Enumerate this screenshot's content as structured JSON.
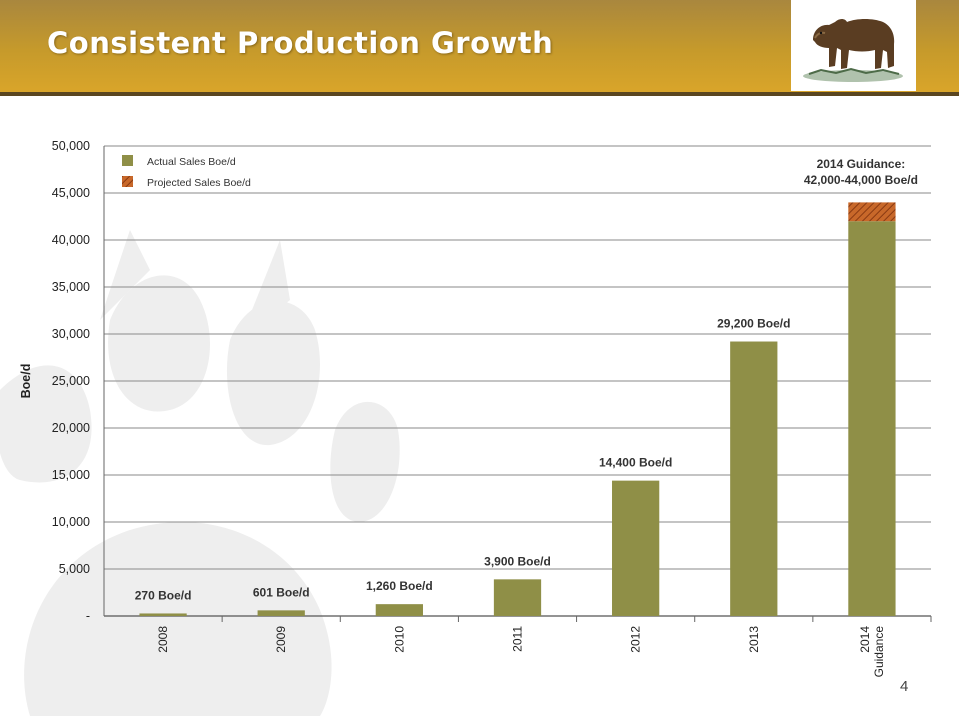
{
  "header": {
    "title": "Consistent Production Growth"
  },
  "logo": {
    "icon": "grizzly-bear-icon"
  },
  "watermark": {
    "icon": "bear-paw-icon"
  },
  "colors": {
    "actual": "#8f8f47",
    "projected": "#c8682a",
    "header": "#c69a2b",
    "header_rule": "#5a4620"
  },
  "chart_data": {
    "type": "bar",
    "stacked": true,
    "ylabel": "Boe/d",
    "xlabel": "",
    "ylim": [
      0,
      50000
    ],
    "yticks": [
      0,
      5000,
      10000,
      15000,
      20000,
      25000,
      30000,
      35000,
      40000,
      45000,
      50000
    ],
    "ytick_labels": [
      "-",
      "5,000",
      "10,000",
      "15,000",
      "20,000",
      "25,000",
      "30,000",
      "35,000",
      "40,000",
      "45,000",
      "50,000"
    ],
    "categories": [
      "2008",
      "2009",
      "2010",
      "2011",
      "2012",
      "2013",
      "2014 Guidance"
    ],
    "category_lines": [
      [
        "2008"
      ],
      [
        "2009"
      ],
      [
        "2010"
      ],
      [
        "2011"
      ],
      [
        "2012"
      ],
      [
        "2013"
      ],
      [
        "2014",
        "Guidance"
      ]
    ],
    "series": [
      {
        "name": "Actual Sales Boe/d",
        "values": [
          270,
          601,
          1260,
          3900,
          14400,
          29200,
          42000
        ]
      },
      {
        "name": "Projected Sales Boe/d",
        "values": [
          0,
          0,
          0,
          0,
          0,
          0,
          2000
        ]
      }
    ],
    "data_labels": [
      "270 Boe/d",
      "601 Boe/d",
      "1,260 Boe/d",
      "3,900 Boe/d",
      "14,400 Boe/d",
      "29,200 Boe/d",
      ""
    ],
    "annotation": {
      "lines": [
        "2014 Guidance:",
        "42,000-44,000 Boe/d"
      ]
    },
    "legend_position": "top-left",
    "grid": true
  },
  "page": {
    "number": "4"
  }
}
